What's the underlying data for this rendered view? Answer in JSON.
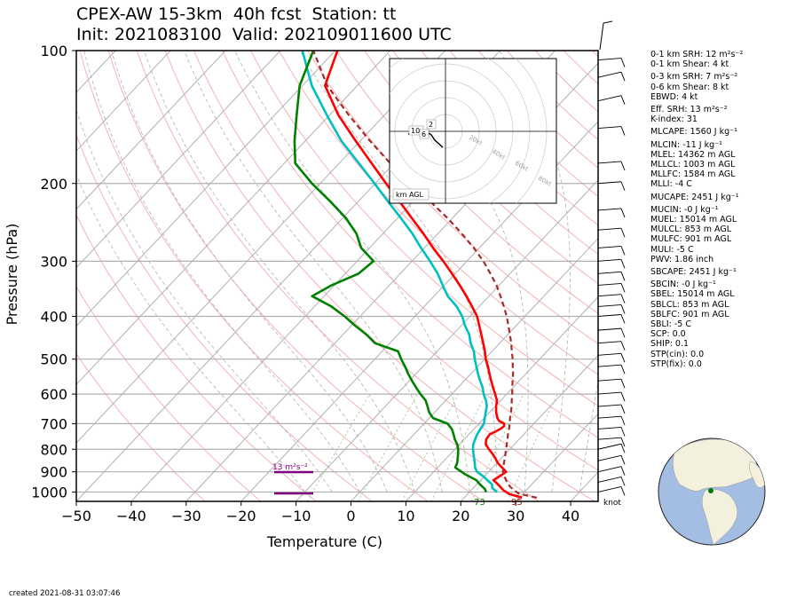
{
  "title": {
    "line1": "CPEX-AW 15-3km  40h fcst  Station: tt",
    "line2": "Init: 2021083100  Valid: 202109011600 UTC"
  },
  "chart_data": {
    "type": "line",
    "xlabel": "Temperature (C)",
    "ylabel": "Pressure (hPa)",
    "xlim": [
      -50,
      45
    ],
    "ylim": [
      1050,
      100
    ],
    "y_scale": "log",
    "x_ticks": [
      -50,
      -40,
      -30,
      -20,
      -10,
      0,
      10,
      20,
      30,
      40
    ],
    "y_ticks": [
      100,
      200,
      300,
      400,
      500,
      600,
      700,
      800,
      900,
      1000
    ],
    "grid": true,
    "series": [
      {
        "color": "#ff0000",
        "pressure": [
          1030,
          1010,
          990,
          960,
          940,
          920,
          910,
          900,
          880,
          860,
          840,
          820,
          800,
          780,
          760,
          740,
          730,
          720,
          710,
          700,
          690,
          680,
          660,
          640,
          620,
          600,
          580,
          560,
          540,
          520,
          500,
          480,
          460,
          440,
          420,
          400,
          380,
          360,
          340,
          320,
          300,
          280,
          260,
          240,
          220,
          200,
          180,
          160,
          140,
          120,
          100
        ],
        "temperature": [
          30.5,
          27.5,
          25.8,
          23.8,
          22.3,
          22.8,
          23.0,
          23.2,
          21.7,
          20.2,
          19.0,
          17.7,
          16.2,
          14.8,
          14.0,
          13.8,
          14.3,
          14.8,
          15.0,
          14.6,
          13.2,
          12.4,
          11.2,
          10.2,
          9.3,
          7.9,
          6.4,
          4.9,
          3.4,
          1.9,
          0.2,
          -1.3,
          -3.0,
          -4.8,
          -6.7,
          -8.7,
          -11.3,
          -14.1,
          -17.2,
          -20.6,
          -24.3,
          -28.4,
          -32.6,
          -37.3,
          -42.4,
          -48.0,
          -54.1,
          -60.9,
          -68.4,
          -75.9,
          -79.6
        ]
      },
      {
        "color": "#00bfbf",
        "pressure": [
          1000,
          980,
          960,
          940,
          920,
          900,
          880,
          860,
          840,
          820,
          800,
          780,
          760,
          740,
          720,
          700,
          680,
          660,
          640,
          620,
          600,
          580,
          560,
          540,
          520,
          500,
          480,
          460,
          440,
          420,
          400,
          380,
          360,
          340,
          320,
          300,
          280,
          260,
          240,
          220,
          200,
          180,
          160,
          140,
          120,
          100
        ],
        "temperature": [
          25.0,
          23.5,
          22.7,
          21.2,
          19.7,
          17.9,
          16.8,
          16.0,
          15.1,
          14.2,
          13.3,
          12.5,
          12.0,
          11.5,
          11.2,
          10.9,
          10.1,
          9.3,
          8.5,
          7.3,
          5.8,
          4.5,
          2.9,
          1.3,
          -0.2,
          -1.8,
          -3.3,
          -5.3,
          -7.0,
          -9.3,
          -11.4,
          -14.1,
          -17.5,
          -20.3,
          -23.2,
          -26.7,
          -30.6,
          -34.6,
          -39.3,
          -44.5,
          -50.1,
          -56.4,
          -63.5,
          -70.5,
          -78.3,
          -86.0
        ]
      },
      {
        "color": "#008000",
        "pressure": [
          1000,
          985,
          960,
          940,
          910,
          880,
          860,
          820,
          800,
          780,
          760,
          740,
          720,
          700,
          680,
          660,
          640,
          620,
          600,
          580,
          560,
          540,
          520,
          500,
          480,
          460,
          440,
          420,
          400,
          380,
          360,
          340,
          320,
          300,
          280,
          260,
          240,
          220,
          200,
          180,
          160,
          140,
          120,
          100
        ],
        "temperature": [
          23.0,
          22.3,
          20.5,
          19.2,
          16.0,
          13.2,
          12.8,
          11.4,
          10.6,
          9.6,
          8.3,
          7.2,
          6.0,
          4.3,
          0.7,
          -1.0,
          -2.3,
          -3.7,
          -5.7,
          -7.6,
          -9.5,
          -11.4,
          -13.2,
          -15.2,
          -17.1,
          -22.7,
          -25.7,
          -29.3,
          -32.8,
          -36.9,
          -42.2,
          -40.5,
          -37.6,
          -37.0,
          -41.5,
          -44.8,
          -49.3,
          -55.0,
          -61.5,
          -68.0,
          -72.0,
          -76.0,
          -80.5,
          -84.0
        ]
      },
      {
        "color": "#a52a2a",
        "style": "dashed",
        "pressure": [
          1030,
          1010,
          990,
          970,
          950,
          930,
          910,
          900,
          880,
          860,
          840,
          820,
          800,
          780,
          760,
          740,
          720,
          700,
          680,
          660,
          640,
          620,
          600,
          580,
          560,
          540,
          520,
          500,
          480,
          460,
          440,
          420,
          400,
          380,
          360,
          340,
          320,
          300,
          280,
          260,
          240,
          220,
          200,
          180,
          160,
          140,
          120,
          100
        ],
        "temperature": [
          33.2,
          29.4,
          27.7,
          26.3,
          25.1,
          24.1,
          23.2,
          22.6,
          22.0,
          21.3,
          20.7,
          20.0,
          19.3,
          18.6,
          17.9,
          17.1,
          16.4,
          15.6,
          14.7,
          13.9,
          13.0,
          12.0,
          11.0,
          9.9,
          8.8,
          7.7,
          6.4,
          5.1,
          3.6,
          2.1,
          0.4,
          -1.4,
          -3.3,
          -5.5,
          -7.9,
          -10.5,
          -13.6,
          -17.0,
          -21.0,
          -25.6,
          -30.8,
          -36.8,
          -43.5,
          -50.7,
          -58.3,
          -66.5,
          -75.5,
          -84.0
        ]
      }
    ],
    "annotations": {
      "dewpoint_surface": "73",
      "temp_surface": "95",
      "srh_label": "13 m²s⁻²",
      "wind_unit": "knot"
    },
    "hodograph": {
      "labels": [
        "20kt",
        "40kt",
        "60kt",
        "80kt"
      ],
      "level_labels": [
        "10",
        "6",
        "2"
      ],
      "footer": "km AGL"
    }
  },
  "stats": [
    "0-1 km SRH: 12 m²s⁻²",
    "0-1 km Shear: 4 kt",
    "0-3 km SRH: 7 m²s⁻²",
    "0-6 km Shear: 8 kt",
    "EBWD: 4 kt",
    "Eff. SRH: 13 m²s⁻²",
    "K-index: 31",
    "MLCAPE: 1560 J kg⁻¹",
    "MLCIN: -11 J kg⁻¹",
    "MLEL: 14362 m AGL",
    "MLLCL: 1003 m AGL",
    "MLLFC: 1584 m AGL",
    "MLLI: -4 C",
    "MUCAPE: 2451 J kg⁻¹",
    "MUCIN: -0 J kg⁻¹",
    "MUEL: 15014 m AGL",
    "MULCL: 853 m AGL",
    "MULFC: 901 m AGL",
    "MULI: -5 C",
    "PWV: 1.86 inch",
    "SBCAPE: 2451 J kg⁻¹",
    "SBCIN: -0 J kg⁻¹",
    "SBEL: 15014 m AGL",
    "SBLCL: 853 m AGL",
    "SBLFC: 901 m AGL",
    "SBLI: -5 C",
    "SCP: 0.0",
    "SHIP: 0.1",
    "STP(cin): 0.0",
    "STP(fix): 0.0"
  ],
  "footer": {
    "created": "created 2021-08-31 03:07:46"
  },
  "colors": {
    "temperature": "#ff0000",
    "dewpoint": "#008000",
    "virtual_temp": "#00bfbf",
    "parcel": "#a52a2a",
    "srh_bar": "#800080"
  }
}
